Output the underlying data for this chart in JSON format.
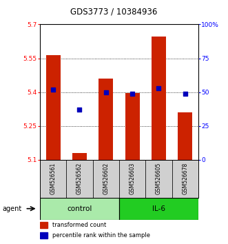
{
  "title": "GDS3773 / 10384936",
  "samples": [
    "GSM526561",
    "GSM526562",
    "GSM526602",
    "GSM526603",
    "GSM526605",
    "GSM526678"
  ],
  "bar_values": [
    5.565,
    5.13,
    5.46,
    5.395,
    5.645,
    5.31
  ],
  "percentile_values": [
    52,
    37,
    50,
    49,
    53,
    49
  ],
  "bar_bottom": 5.1,
  "ylim_left": [
    5.1,
    5.7
  ],
  "ylim_right": [
    0,
    100
  ],
  "yticks_left": [
    5.1,
    5.25,
    5.4,
    5.55,
    5.7
  ],
  "yticks_right": [
    0,
    25,
    50,
    75,
    100
  ],
  "ytick_labels_left": [
    "5.1",
    "5.25",
    "5.4",
    "5.55",
    "5.7"
  ],
  "ytick_labels_right": [
    "0",
    "25",
    "50",
    "75",
    "100%"
  ],
  "grid_lines": [
    5.25,
    5.4,
    5.55
  ],
  "groups": [
    {
      "label": "control",
      "indices": [
        0,
        1,
        2
      ],
      "color": "#aaeaaa"
    },
    {
      "label": "IL-6",
      "indices": [
        3,
        4,
        5
      ],
      "color": "#22cc22"
    }
  ],
  "bar_color": "#cc2200",
  "percentile_color": "#0000bb",
  "agent_label": "agent",
  "legend_items": [
    {
      "label": "transformed count",
      "color": "#cc2200"
    },
    {
      "label": "percentile rank within the sample",
      "color": "#0000bb"
    }
  ]
}
